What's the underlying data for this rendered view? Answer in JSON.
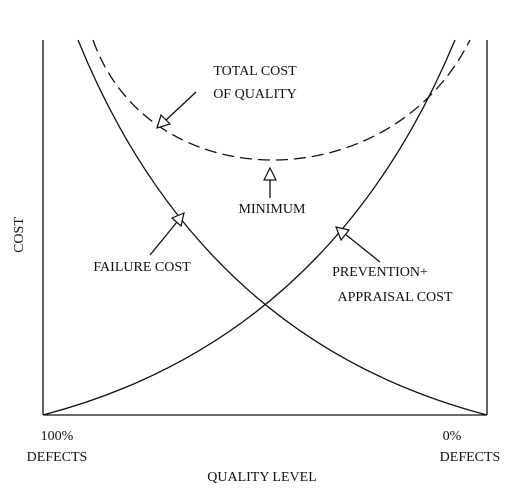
{
  "axes": {
    "y_label": "COST",
    "x_label": "QUALITY LEVEL",
    "x_start": [
      "100%",
      "DEFECTS"
    ],
    "x_end": [
      "0%",
      "DEFECTS"
    ]
  },
  "curves": {
    "total": [
      "TOTAL COST",
      "OF QUALITY"
    ],
    "minimum": "MINIMUM",
    "failure": "FAILURE COST",
    "prevention": [
      "PREVENTION+",
      "APPRAISAL COST"
    ]
  }
}
